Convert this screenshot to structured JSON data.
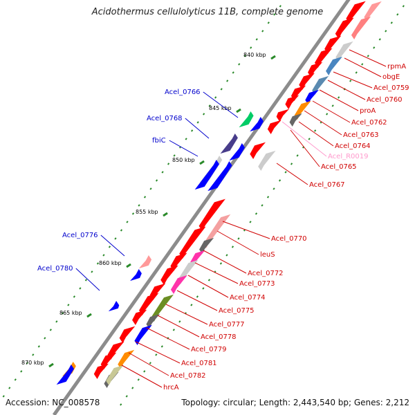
{
  "title": "Acidothermus cellulolyticus 11B, complete genome",
  "footer": {
    "accession": "Accession: NC_008578",
    "summary": "Topology: circular; Length: 2,443,540 bp; Genes: 2,212"
  },
  "colors": {
    "backbone": "#808080",
    "gene_forward": "#ff0000",
    "gene_reverse": "#0000ff",
    "label_forward": "#d00000",
    "label_reverse": "#0000cc",
    "rna_label": "#ff99cc",
    "tick": "#2a8a2a"
  },
  "kbp_ticks": [
    "840 kbp",
    "845 kbp",
    "850 kbp",
    "855 kbp",
    "860 kbp",
    "865 kbp",
    "870 kbp"
  ],
  "labels_reverse": [
    "Acel_0766",
    "Acel_0768",
    "fbiC",
    "Acel_0776",
    "Acel_0780"
  ],
  "labels_forward": [
    "rpmA",
    "obgE",
    "Acel_0759",
    "Acel_0760",
    "proA",
    "Acel_0762",
    "Acel_0763",
    "Acel_0764",
    "Acel_R0019",
    "Acel_0765",
    "Acel_0767",
    "Acel_0770",
    "leuS",
    "Acel_0772",
    "Acel_0773",
    "Acel_0774",
    "Acel_0775",
    "Acel_0777",
    "Acel_0778",
    "Acel_0779",
    "Acel_0781",
    "Acel_0782",
    "hrcA"
  ]
}
